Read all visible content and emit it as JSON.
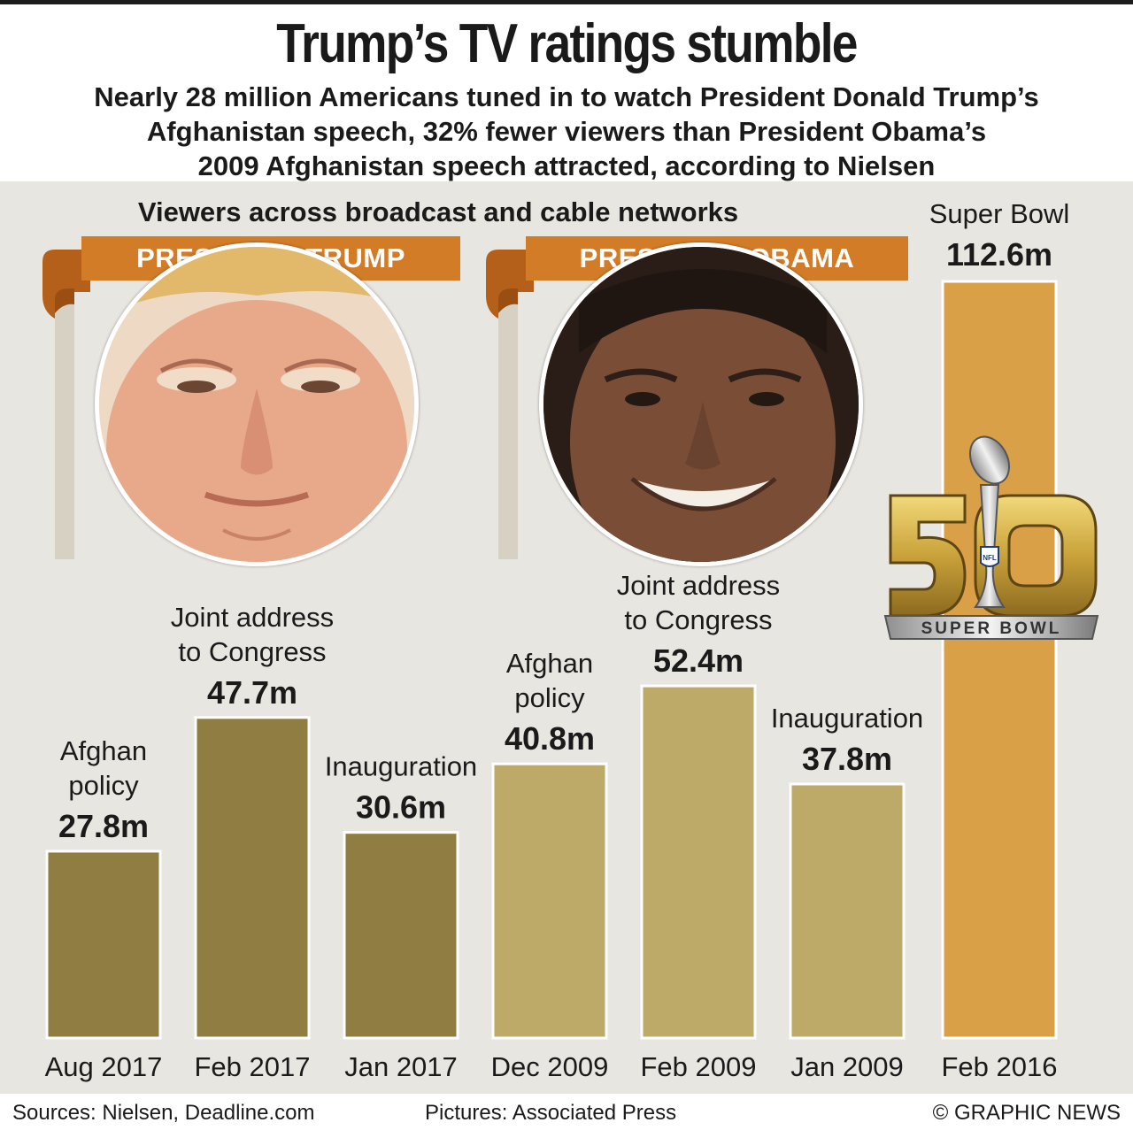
{
  "header": {
    "title": "Trump’s TV ratings stumble",
    "subtitle_lines": [
      "Nearly 28 million Americans tuned in to watch President Donald Trump’s",
      "Afghanistan speech, 32% fewer viewers than President Obama’s",
      "2009 Afghanistan speech attracted, according to Nielsen"
    ]
  },
  "section_label": "Viewers across broadcast and cable networks",
  "banners": {
    "trump": "PRESIDENT TRUMP",
    "obama": "PRESIDENT OBAMA"
  },
  "logo": {
    "number": "50",
    "text": "SUPER BOWL",
    "shield_text": "NFL"
  },
  "footer": {
    "sources": "Sources: Nielsen, Deadline.com",
    "pictures": "Pictures: Associated Press",
    "copyright": "© GRAPHIC NEWS"
  },
  "colors": {
    "trump_bars": "#8f7d42",
    "obama_bars": "#bda968",
    "superbowl_bar": "#d9a048",
    "banner": "#d37c28",
    "panel": "#e8e6e1"
  },
  "chart_data": {
    "type": "bar",
    "unit": "m",
    "bars": [
      {
        "category": "Aug 2017",
        "event_lines": [
          "Afghan",
          "policy"
        ],
        "value": 27.8,
        "label": "27.8m",
        "group": "trump"
      },
      {
        "category": "Feb 2017",
        "event_lines": [
          "Joint address",
          "to Congress"
        ],
        "value": 47.7,
        "label": "47.7m",
        "group": "trump"
      },
      {
        "category": "Jan 2017",
        "event_lines": [
          "Inauguration"
        ],
        "value": 30.6,
        "label": "30.6m",
        "group": "trump"
      },
      {
        "category": "Dec 2009",
        "event_lines": [
          "Afghan",
          "policy"
        ],
        "value": 40.8,
        "label": "40.8m",
        "group": "obama"
      },
      {
        "category": "Feb 2009",
        "event_lines": [
          "Joint address",
          "to Congress"
        ],
        "value": 52.4,
        "label": "52.4m",
        "group": "obama"
      },
      {
        "category": "Jan 2009",
        "event_lines": [
          "Inauguration"
        ],
        "value": 37.8,
        "label": "37.8m",
        "group": "obama"
      },
      {
        "category": "Feb 2016",
        "event_lines": [
          "Super Bowl"
        ],
        "value": 112.6,
        "label": "112.6m",
        "group": "superbowl"
      }
    ],
    "ylim": [
      0,
      112.6
    ]
  }
}
